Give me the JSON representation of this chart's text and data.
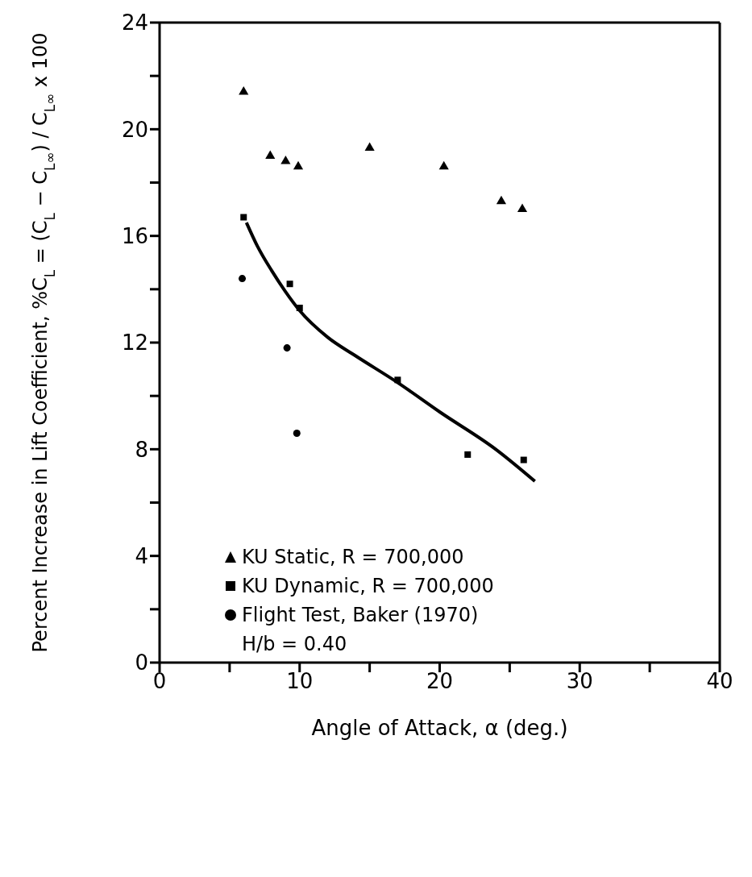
{
  "chart_data": {
    "type": "scatter",
    "xlabel": "Angle of Attack, α (deg.)",
    "ylabel": "Percent Increase in Lift Coefficient, %C$_{L}$ = (C$_{L}$ − C$_{L∞}$) / C$_{L∞}$ x 100",
    "xlim": [
      0,
      40
    ],
    "ylim": [
      0,
      24
    ],
    "xticks": [
      0,
      {
        "value": 5,
        "label": null
      },
      10,
      {
        "value": 15,
        "label": null
      },
      20,
      {
        "value": 25,
        "label": null
      },
      30,
      {
        "value": 35,
        "label": null
      },
      40
    ],
    "yticks": [
      0,
      {
        "value": 2,
        "label": null
      },
      4,
      {
        "value": 6,
        "label": null
      },
      8,
      {
        "value": 10,
        "label": null
      },
      12,
      {
        "value": 14,
        "label": null
      },
      16,
      {
        "value": 18,
        "label": null
      },
      20,
      {
        "value": 22,
        "label": null
      },
      24
    ],
    "grid": false,
    "legend": "bottom left",
    "annotations": [
      "H/b = 0.40"
    ],
    "series": [
      {
        "name": "KU Static, R = 700,000",
        "marker": "triangle",
        "color": "#000000",
        "x": [
          6.0,
          7.9,
          9.0,
          9.9,
          15.0,
          20.3,
          24.4,
          25.9
        ],
        "values": [
          21.4,
          19.0,
          18.8,
          18.6,
          19.3,
          18.6,
          17.3,
          17.0
        ]
      },
      {
        "name": "KU Dynamic, R = 700,000",
        "marker": "square",
        "color": "#000000",
        "x": [
          6.0,
          9.3,
          10.0,
          17.0,
          22.0,
          26.0
        ],
        "values": [
          16.7,
          14.2,
          13.3,
          10.6,
          7.8,
          7.6
        ]
      },
      {
        "name": "Flight Test, Baker (1970)",
        "marker": "circle",
        "color": "#000000",
        "x": [
          5.9,
          9.1,
          9.8
        ],
        "values": [
          14.4,
          11.8,
          8.6
        ]
      },
      {
        "type": "line",
        "marker": "none",
        "line_style": "solid",
        "color": "#000000",
        "x": [
          6.2,
          7,
          8,
          9,
          10,
          12,
          14,
          17,
          20,
          24,
          26.8
        ],
        "values": [
          16.5,
          15.6,
          14.7,
          13.9,
          13.2,
          12.2,
          11.5,
          10.5,
          9.4,
          8.0,
          6.8
        ]
      }
    ]
  }
}
